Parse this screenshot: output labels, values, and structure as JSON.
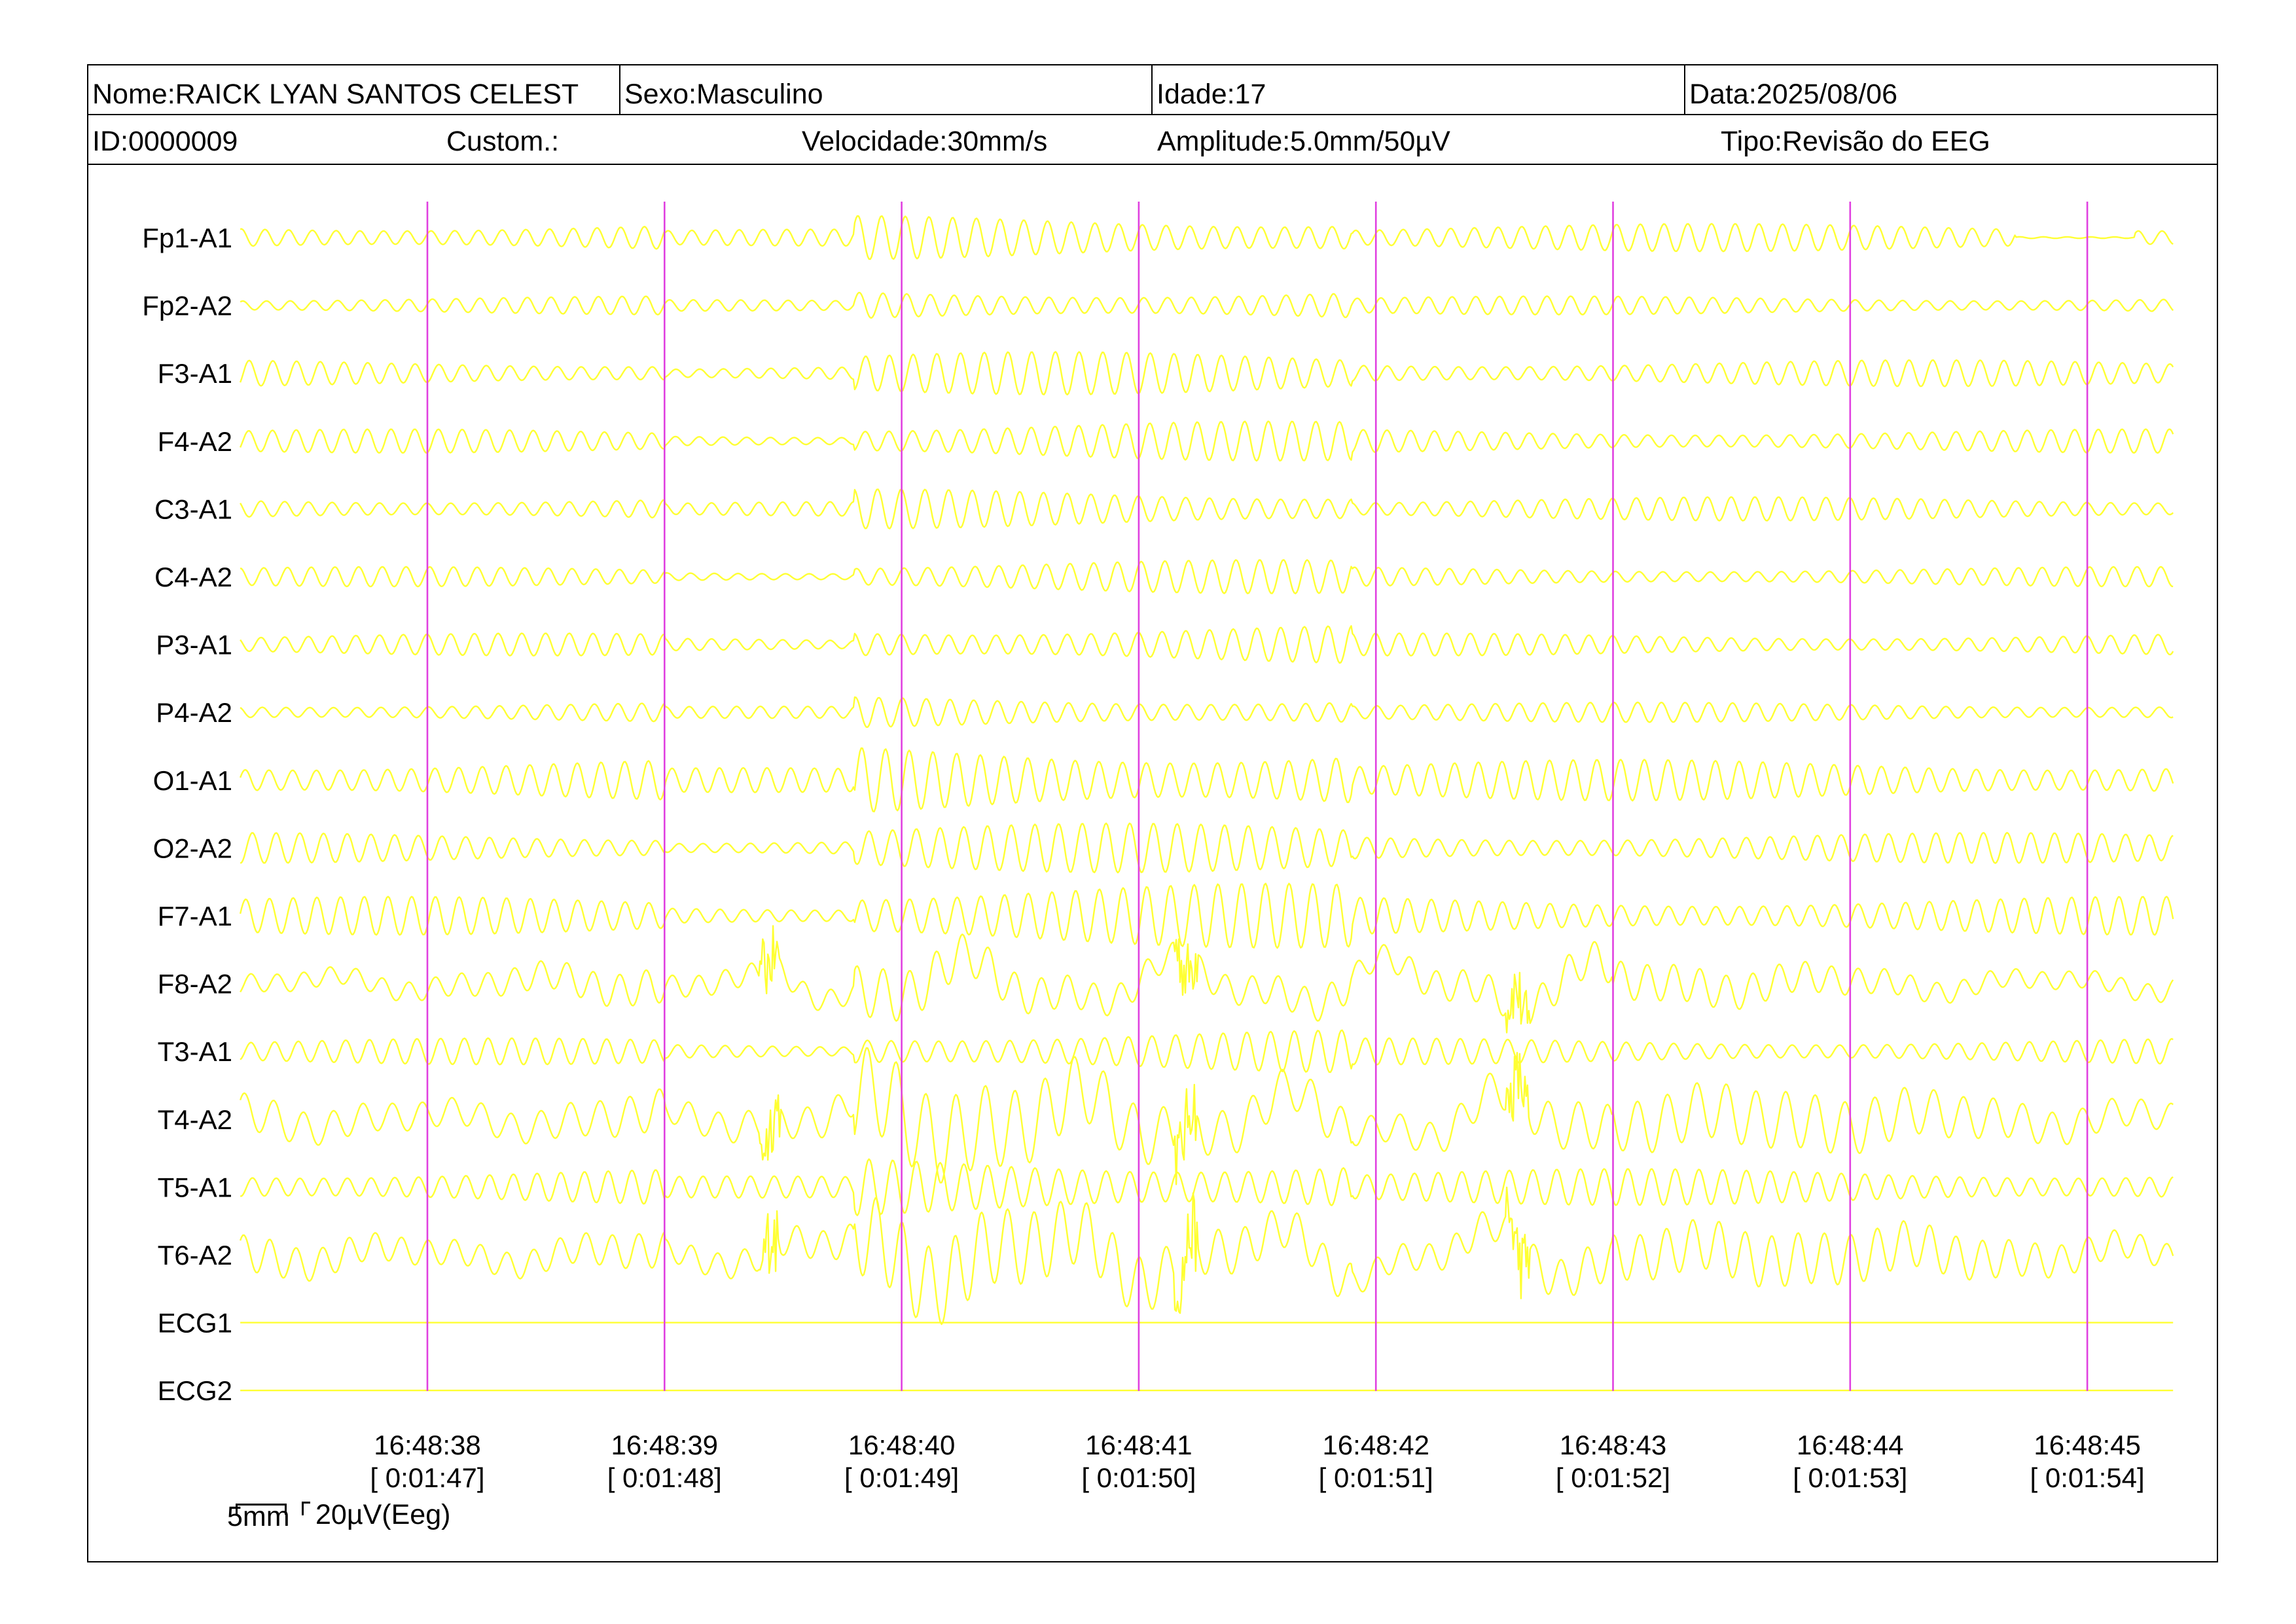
{
  "header": {
    "nome": "Nome:RAICK LYAN SANTOS CELEST",
    "sexo": "Sexo:Masculino",
    "idade": "Idade:17",
    "data": "Data:2025/08/06",
    "id": "ID:0000009",
    "custom": "Custom.:",
    "velocidade": "Velocidade:30mm/s",
    "amplitude": "Amplitude:5.0mm/50µV",
    "tipo": "Tipo:Revisão do EEG"
  },
  "scale": {
    "length_label": "5mm",
    "amplitude_label": "20µV(Eeg)"
  },
  "colors": {
    "trace": "#ffff33",
    "marker": "#e040e0",
    "background": "#ffffff",
    "text": "#000000"
  },
  "chart_data": {
    "type": "line",
    "title": "",
    "x_unit": "s",
    "x_range": [
      106.2,
      114.4
    ],
    "time_ticks": [
      {
        "clock": "16:48:38",
        "elapsed": "[ 0:01:47]"
      },
      {
        "clock": "16:48:39",
        "elapsed": "[ 0:01:48]"
      },
      {
        "clock": "16:48:40",
        "elapsed": "[ 0:01:49]"
      },
      {
        "clock": "16:48:41",
        "elapsed": "[ 0:01:50]"
      },
      {
        "clock": "16:48:42",
        "elapsed": "[ 0:01:51]"
      },
      {
        "clock": "16:48:43",
        "elapsed": "[ 0:01:52]"
      },
      {
        "clock": "16:48:44",
        "elapsed": "[ 0:01:53]"
      },
      {
        "clock": "16:48:45",
        "elapsed": "[ 0:01:54]"
      }
    ],
    "channels": [
      {
        "name": "Fp1-A1",
        "freq": 10.0,
        "amp": 0.42,
        "burst": 0.58,
        "quiet": [
          113.7,
          114.2
        ],
        "slow": 0
      },
      {
        "name": "Fp2-A2",
        "freq": 10.0,
        "amp": 0.28,
        "burst": 0.72,
        "quiet": [],
        "slow": 0
      },
      {
        "name": "F3-A1",
        "freq": 10.0,
        "amp": 0.4,
        "burst": 0.62,
        "quiet": [],
        "slow": 0
      },
      {
        "name": "F4-A2",
        "freq": 10.0,
        "amp": 0.36,
        "burst": 0.66,
        "quiet": [],
        "slow": 0
      },
      {
        "name": "C3-A1",
        "freq": 10.0,
        "amp": 0.36,
        "burst": 0.66,
        "quiet": [],
        "slow": 0
      },
      {
        "name": "C4-A2",
        "freq": 10.0,
        "amp": 0.3,
        "burst": 0.7,
        "quiet": [],
        "slow": 0
      },
      {
        "name": "P3-A1",
        "freq": 10.0,
        "amp": 0.34,
        "burst": 0.72,
        "quiet": [],
        "slow": 0
      },
      {
        "name": "P4-A2",
        "freq": 10.0,
        "amp": 0.3,
        "burst": 0.62,
        "quiet": [],
        "slow": 0
      },
      {
        "name": "O1-A1",
        "freq": 10.0,
        "amp": 0.62,
        "burst": 0.72,
        "quiet": [],
        "slow": 0
      },
      {
        "name": "O2-A2",
        "freq": 10.0,
        "amp": 0.46,
        "burst": 0.62,
        "quiet": [],
        "slow": 0
      },
      {
        "name": "F7-A1",
        "freq": 10.0,
        "amp": 0.58,
        "burst": 0.68,
        "quiet": [],
        "slow": 0
      },
      {
        "name": "F8-A2",
        "freq": 9.0,
        "amp": 0.55,
        "burst": 0.55,
        "quiet": [],
        "slow": 1.4
      },
      {
        "name": "T3-A1",
        "freq": 10.0,
        "amp": 0.4,
        "burst": 0.62,
        "quiet": [],
        "slow": 0
      },
      {
        "name": "T4-A2",
        "freq": 8.0,
        "amp": 0.85,
        "burst": 0.55,
        "quiet": [],
        "slow": 1.5
      },
      {
        "name": "T5-A1",
        "freq": 10.0,
        "amp": 0.55,
        "burst": 0.68,
        "quiet": [],
        "slow": 0
      },
      {
        "name": "T6-A2",
        "freq": 9.0,
        "amp": 0.78,
        "burst": 0.55,
        "quiet": [],
        "slow": 1.6
      },
      {
        "name": "ECG1",
        "freq": 0,
        "amp": 0,
        "burst": 0,
        "quiet": [],
        "slow": 0
      },
      {
        "name": "ECG2",
        "freq": 0,
        "amp": 0,
        "burst": 0,
        "quiet": [],
        "slow": 0
      }
    ]
  }
}
